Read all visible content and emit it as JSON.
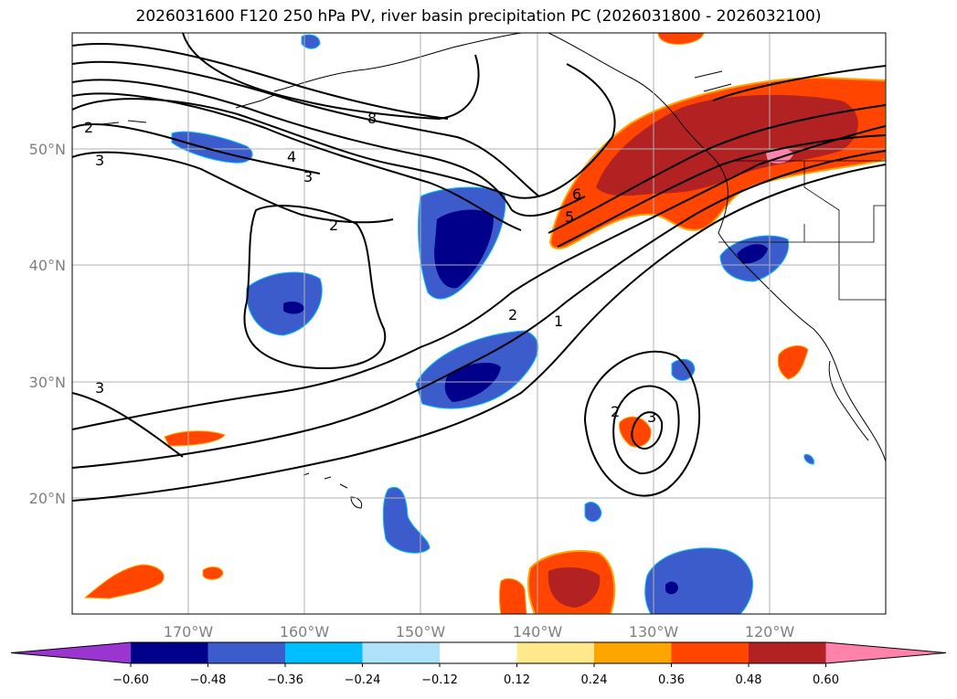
{
  "title": "2026031600 F120 250 hPa PV, river basin precipitation PC (2026031800 - 2026032100)",
  "map": {
    "lat_labels": [
      "50°N",
      "40°N",
      "30°N",
      "20°N"
    ],
    "lon_labels": [
      "170°W",
      "160°W",
      "150°W",
      "140°W",
      "130°W",
      "120°W"
    ],
    "lat_values": [
      50,
      40,
      30,
      20
    ],
    "lon_values": [
      -170,
      -160,
      -150,
      -140,
      -130,
      -120
    ],
    "extent": {
      "lon_min": -180,
      "lon_max": -110,
      "lat_min": 10,
      "lat_max": 60
    },
    "grid": true,
    "pv_contour_labels": [
      "2",
      "3",
      "8",
      "4",
      "3",
      "2",
      "6",
      "5",
      "2",
      "1",
      "3",
      "2",
      "3"
    ]
  },
  "colorbar": {
    "ticks": [
      "−0.60",
      "−0.48",
      "−0.36",
      "−0.24",
      "−0.12",
      "0.12",
      "0.24",
      "0.36",
      "0.48",
      "0.60"
    ],
    "colors": [
      "#9a35cf",
      "#00008b",
      "#3c5ccc",
      "#00bfff",
      "#aee1fa",
      "#ffffff",
      "#ffe98a",
      "#ffa500",
      "#ff4500",
      "#b22222",
      "#ff82ab"
    ],
    "extend": "both"
  }
}
